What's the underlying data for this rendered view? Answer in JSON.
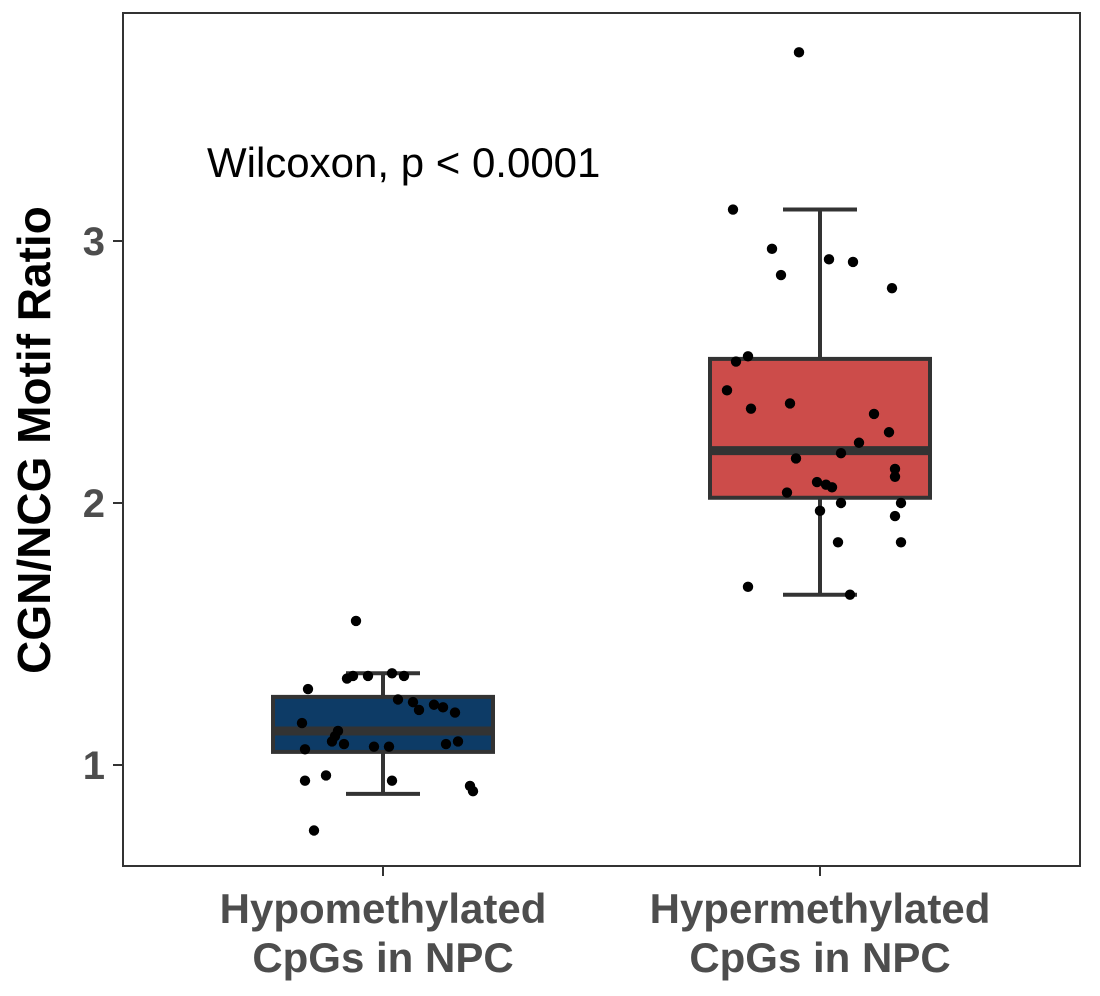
{
  "chart_data": {
    "type": "box",
    "ylabel": "CGN/NCG Motif Ratio",
    "xlabel": "",
    "ylim": [
      0.6,
      3.85
    ],
    "yticks": [
      1,
      2,
      3
    ],
    "grid": false,
    "annotation": "Wilcoxon, p < 0.0001",
    "categories": [
      {
        "label_lines": [
          "Hypomethylated",
          "CpGs in NPC"
        ],
        "color": "#0d3b66",
        "box": {
          "whisker_low": 0.89,
          "q1": 1.05,
          "median": 1.13,
          "q3": 1.26,
          "whisker_high": 1.35
        },
        "points": [
          {
            "dx": -0.09,
            "y": 1.55
          },
          {
            "dx": -0.1,
            "y": 1.34
          },
          {
            "dx": -0.05,
            "y": 1.34
          },
          {
            "dx": 0.03,
            "y": 1.35
          },
          {
            "dx": 0.07,
            "y": 1.34
          },
          {
            "dx": -0.12,
            "y": 1.33
          },
          {
            "dx": -0.25,
            "y": 1.29
          },
          {
            "dx": 0.05,
            "y": 1.25
          },
          {
            "dx": 0.1,
            "y": 1.24
          },
          {
            "dx": 0.17,
            "y": 1.23
          },
          {
            "dx": 0.2,
            "y": 1.22
          },
          {
            "dx": 0.12,
            "y": 1.21
          },
          {
            "dx": 0.24,
            "y": 1.2
          },
          {
            "dx": -0.27,
            "y": 1.16
          },
          {
            "dx": -0.15,
            "y": 1.13
          },
          {
            "dx": -0.16,
            "y": 1.11
          },
          {
            "dx": -0.17,
            "y": 1.09
          },
          {
            "dx": 0.25,
            "y": 1.09
          },
          {
            "dx": 0.21,
            "y": 1.08
          },
          {
            "dx": -0.13,
            "y": 1.08
          },
          {
            "dx": -0.03,
            "y": 1.07
          },
          {
            "dx": 0.02,
            "y": 1.07
          },
          {
            "dx": -0.26,
            "y": 1.06
          },
          {
            "dx": -0.19,
            "y": 0.96
          },
          {
            "dx": -0.26,
            "y": 0.94
          },
          {
            "dx": 0.03,
            "y": 0.94
          },
          {
            "dx": 0.29,
            "y": 0.92
          },
          {
            "dx": 0.3,
            "y": 0.9
          },
          {
            "dx": -0.23,
            "y": 0.75
          }
        ]
      },
      {
        "label_lines": [
          "Hypermethylated",
          "CpGs in NPC"
        ],
        "color": "#cc4c4a",
        "box": {
          "whisker_low": 1.65,
          "q1": 2.02,
          "median": 2.2,
          "q3": 2.55,
          "whisker_high": 3.12
        },
        "points": [
          {
            "dx": -0.07,
            "y": 3.72
          },
          {
            "dx": -0.29,
            "y": 3.12
          },
          {
            "dx": -0.16,
            "y": 2.97
          },
          {
            "dx": 0.03,
            "y": 2.93
          },
          {
            "dx": 0.11,
            "y": 2.92
          },
          {
            "dx": -0.13,
            "y": 2.87
          },
          {
            "dx": 0.24,
            "y": 2.82
          },
          {
            "dx": -0.24,
            "y": 2.56
          },
          {
            "dx": -0.28,
            "y": 2.54
          },
          {
            "dx": -0.31,
            "y": 2.43
          },
          {
            "dx": -0.1,
            "y": 2.38
          },
          {
            "dx": -0.23,
            "y": 2.36
          },
          {
            "dx": 0.18,
            "y": 2.34
          },
          {
            "dx": 0.23,
            "y": 2.27
          },
          {
            "dx": 0.13,
            "y": 2.23
          },
          {
            "dx": 0.07,
            "y": 2.19
          },
          {
            "dx": -0.08,
            "y": 2.17
          },
          {
            "dx": 0.25,
            "y": 2.13
          },
          {
            "dx": 0.25,
            "y": 2.1
          },
          {
            "dx": -0.01,
            "y": 2.08
          },
          {
            "dx": 0.02,
            "y": 2.07
          },
          {
            "dx": 0.04,
            "y": 2.06
          },
          {
            "dx": -0.11,
            "y": 2.04
          },
          {
            "dx": 0.07,
            "y": 2.0
          },
          {
            "dx": 0.27,
            "y": 2.0
          },
          {
            "dx": 0.0,
            "y": 1.97
          },
          {
            "dx": 0.25,
            "y": 1.95
          },
          {
            "dx": 0.06,
            "y": 1.85
          },
          {
            "dx": 0.27,
            "y": 1.85
          },
          {
            "dx": -0.24,
            "y": 1.68
          },
          {
            "dx": 0.1,
            "y": 1.65
          }
        ]
      }
    ]
  }
}
